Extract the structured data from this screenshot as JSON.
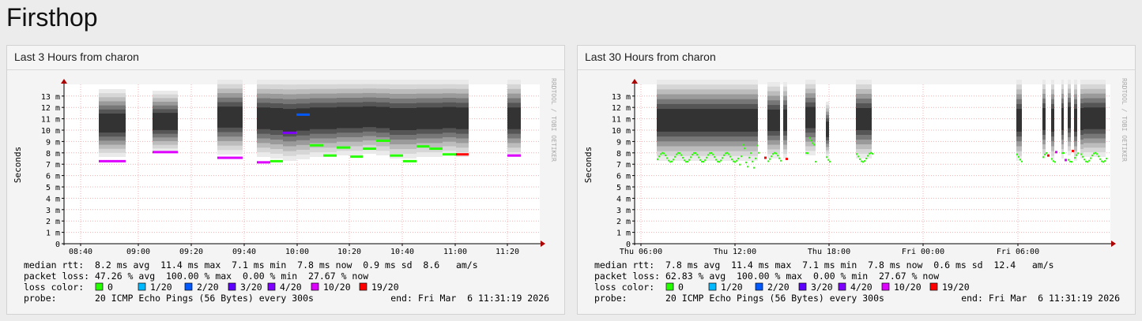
{
  "page": {
    "title": "Firsthop"
  },
  "panels": [
    {
      "title": "Last 3 Hours from charon",
      "ylabel": "Seconds",
      "y_ticks": [
        "13 m",
        "12 m",
        "11 m",
        "10 m",
        "9 m",
        "8 m",
        "7 m",
        "6 m",
        "5 m",
        "4 m",
        "3 m",
        "2 m",
        "1 m",
        "0"
      ],
      "x_ticks": [
        "08:40",
        "09:00",
        "09:20",
        "09:40",
        "10:00",
        "10:20",
        "10:40",
        "11:00",
        "11:20"
      ],
      "watermark": "RRDTOOL / TOBI OETIKER",
      "median_rtt": "median rtt:  8.2 ms avg  11.4 ms max  7.1 ms min  7.8 ms now  0.9 ms sd  8.6   am/s",
      "packet_loss": "packet loss: 47.26 % avg  100.00 % max  0.00 % min  27.67 % now",
      "probe": "probe:       20 ICMP Echo Pings (56 Bytes) every 300s",
      "end": "end: Fri Mar  6 11:31:19 2026"
    },
    {
      "title": "Last 30 Hours from charon",
      "ylabel": "Seconds",
      "y_ticks": [
        "13 m",
        "12 m",
        "11 m",
        "10 m",
        "9 m",
        "8 m",
        "7 m",
        "6 m",
        "5 m",
        "4 m",
        "3 m",
        "2 m",
        "1 m",
        "0"
      ],
      "x_ticks": [
        "Thu 06:00",
        "Thu 12:00",
        "Thu 18:00",
        "Fri 00:00",
        "Fri 06:00"
      ],
      "watermark": "RRDTOOL / TOBI OETIKER",
      "median_rtt": "median rtt:  7.8 ms avg  11.4 ms max  7.1 ms min  7.8 ms now  0.6 ms sd  12.4   am/s",
      "packet_loss": "packet loss: 62.83 % avg  100.00 % max  0.00 % min  27.67 % now",
      "probe": "probe:       20 ICMP Echo Pings (56 Bytes) every 300s",
      "end": "end: Fri Mar  6 11:31:19 2026"
    }
  ],
  "loss_legend": {
    "label": "loss color:",
    "items": [
      {
        "label": "0",
        "color": "#26ff00"
      },
      {
        "label": "1/20",
        "color": "#00b8ff"
      },
      {
        "label": "2/20",
        "color": "#0059ff"
      },
      {
        "label": "3/20",
        "color": "#5e00ff"
      },
      {
        "label": "4/20",
        "color": "#7e00ff"
      },
      {
        "label": "10/20",
        "color": "#dd00ff"
      },
      {
        "label": "19/20",
        "color": "#ff0000"
      }
    ]
  },
  "chart_data": [
    {
      "type": "line",
      "title": "Last 3 Hours from charon",
      "ylabel": "Seconds",
      "ylim": [
        0,
        0.014
      ],
      "series": [
        {
          "x": [
            "08:51",
            "09:06",
            "09:36",
            "09:51",
            "09:56",
            "10:01",
            "10:06",
            "10:11",
            "10:16",
            "10:21",
            "10:26",
            "10:31",
            "10:36",
            "10:41",
            "10:46",
            "10:51",
            "10:56",
            "11:01",
            "11:26"
          ],
          "values": [
            7.3,
            8.1,
            7.6,
            7.2,
            7.3,
            9.8,
            11.4,
            8.7,
            7.8,
            8.5,
            7.7,
            8.4,
            9.1,
            7.8,
            7.3,
            8.6,
            8.4,
            7.9,
            7.8
          ]
        }
      ]
    },
    {
      "type": "line",
      "title": "Last 30 Hours from charon",
      "ylabel": "Seconds",
      "ylim": [
        0,
        0.014
      ],
      "series": [
        {
          "x": [
            "Thu 06:00",
            "Thu 09:00",
            "Thu 12:00",
            "Thu 13:30",
            "Thu 15:00",
            "Thu 17:30",
            "Thu 20:00",
            "Fri 05:30",
            "Fri 08:00",
            "Fri 11:00"
          ],
          "values": [
            7.6,
            7.5,
            7.8,
            8.3,
            7.6,
            8.4,
            7.5,
            7.6,
            7.5,
            8.0
          ]
        }
      ]
    }
  ]
}
